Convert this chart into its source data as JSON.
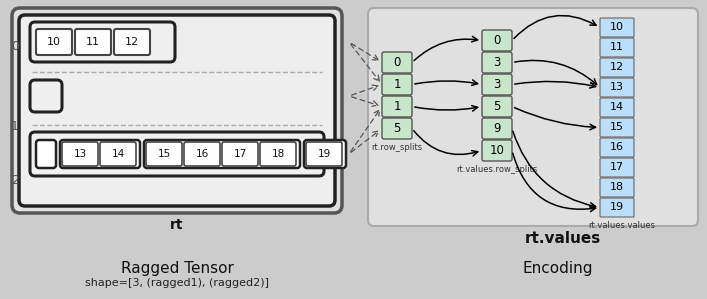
{
  "fig_width": 7.07,
  "fig_height": 2.99,
  "dpi": 100,
  "bg_color": "#cccccc",
  "left_bg": "#d8d8d8",
  "right_bg": "#d8d8d8",
  "cell_green": "#c8e6c9",
  "cell_blue": "#bbdefb",
  "cell_white": "#ffffff",
  "title_left": "Ragged Tensor",
  "subtitle_left": "shape=[3, (ragged1), (ragged2)]",
  "title_right": "Encoding",
  "rt_label": "rt",
  "rt_values_label": "rt.values",
  "rs_label": "rt.row_splits",
  "vrs_label": "rt.values.row_splits",
  "vv_label": "rt.values.values",
  "rs_vals": [
    "0",
    "1",
    "1",
    "5"
  ],
  "vrs_vals": [
    "0",
    "3",
    "3",
    "5",
    "9",
    "10"
  ],
  "vv_vals": [
    "10",
    "11",
    "12",
    "13",
    "14",
    "15",
    "16",
    "17",
    "18",
    "19"
  ],
  "row0_vals": [
    "10",
    "11",
    "12"
  ],
  "row1_vals": [],
  "row2_groups": [
    [],
    [
      "13",
      "14"
    ],
    [
      "15",
      "16",
      "17",
      "18"
    ],
    [
      "19"
    ]
  ]
}
